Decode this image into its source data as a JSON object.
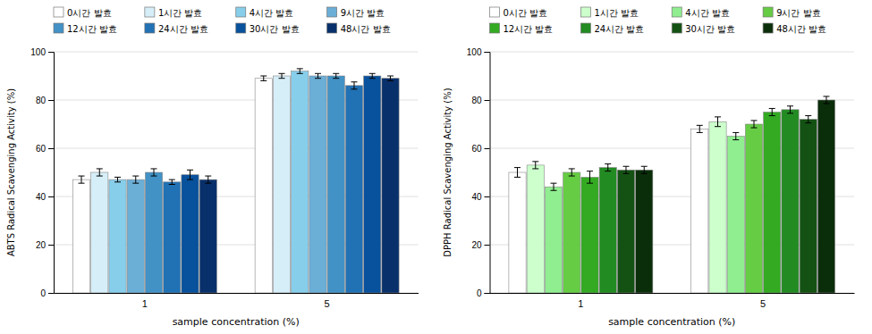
{
  "chart_data": [
    {
      "type": "bar",
      "xlabel": "sample concentration (%)",
      "ylabel": "ABTS Radical Scavenging Activity (%)",
      "categories": [
        "1",
        "5"
      ],
      "series": [
        {
          "name": "0시간 발효",
          "color": "#ffffff",
          "values": [
            47,
            89
          ],
          "errors": [
            1.5,
            1.0
          ]
        },
        {
          "name": "1시간 발효",
          "color": "#d6eef8",
          "values": [
            50,
            90
          ],
          "errors": [
            1.5,
            1.0
          ]
        },
        {
          "name": "4시간 발효",
          "color": "#87ceeb",
          "values": [
            47,
            92
          ],
          "errors": [
            1.0,
            1.0
          ]
        },
        {
          "name": "9시간 발효",
          "color": "#6baed6",
          "values": [
            47,
            90
          ],
          "errors": [
            1.5,
            1.0
          ]
        },
        {
          "name": "12시간 발효",
          "color": "#4292c6",
          "values": [
            50,
            90
          ],
          "errors": [
            1.5,
            1.0
          ]
        },
        {
          "name": "24시간 발효",
          "color": "#2171b5",
          "values": [
            46,
            86
          ],
          "errors": [
            1.0,
            1.5
          ]
        },
        {
          "name": "30시간 발효",
          "color": "#08519c",
          "values": [
            49,
            90
          ],
          "errors": [
            2.0,
            1.0
          ]
        },
        {
          "name": "48시간 발효",
          "color": "#08306b",
          "values": [
            47,
            89
          ],
          "errors": [
            1.5,
            1.0
          ]
        }
      ],
      "ylim": [
        0,
        100
      ],
      "yticks": [
        0,
        20,
        40,
        60,
        80,
        100
      ],
      "grid": true,
      "legend": "top"
    },
    {
      "type": "bar",
      "xlabel": "sample concentration (%)",
      "ylabel": "DPPH Radical Scavenging Activity (%)",
      "categories": [
        "1",
        "5"
      ],
      "series": [
        {
          "name": "0시간 발효",
          "color": "#ffffff",
          "values": [
            50,
            68
          ],
          "errors": [
            2.0,
            1.5
          ]
        },
        {
          "name": "1시간 발효",
          "color": "#ccffcc",
          "values": [
            53,
            71
          ],
          "errors": [
            1.5,
            2.0
          ]
        },
        {
          "name": "4시간 발효",
          "color": "#90ee90",
          "values": [
            44,
            65
          ],
          "errors": [
            1.5,
            1.5
          ]
        },
        {
          "name": "9시간 발효",
          "color": "#66cc44",
          "values": [
            50,
            70
          ],
          "errors": [
            1.5,
            1.5
          ]
        },
        {
          "name": "12시간 발효",
          "color": "#33aa22",
          "values": [
            48,
            75
          ],
          "errors": [
            2.5,
            1.5
          ]
        },
        {
          "name": "24시간 발효",
          "color": "#228B22",
          "values": [
            52,
            76
          ],
          "errors": [
            1.5,
            1.5
          ]
        },
        {
          "name": "30시간 발효",
          "color": "#145214",
          "values": [
            51,
            72
          ],
          "errors": [
            1.5,
            1.5
          ]
        },
        {
          "name": "48시간 발효",
          "color": "#0a2e0a",
          "values": [
            51,
            80
          ],
          "errors": [
            1.5,
            1.5
          ]
        }
      ],
      "ylim": [
        0,
        100
      ],
      "yticks": [
        0,
        20,
        40,
        60,
        80,
        100
      ],
      "grid": true,
      "legend": "top"
    }
  ]
}
